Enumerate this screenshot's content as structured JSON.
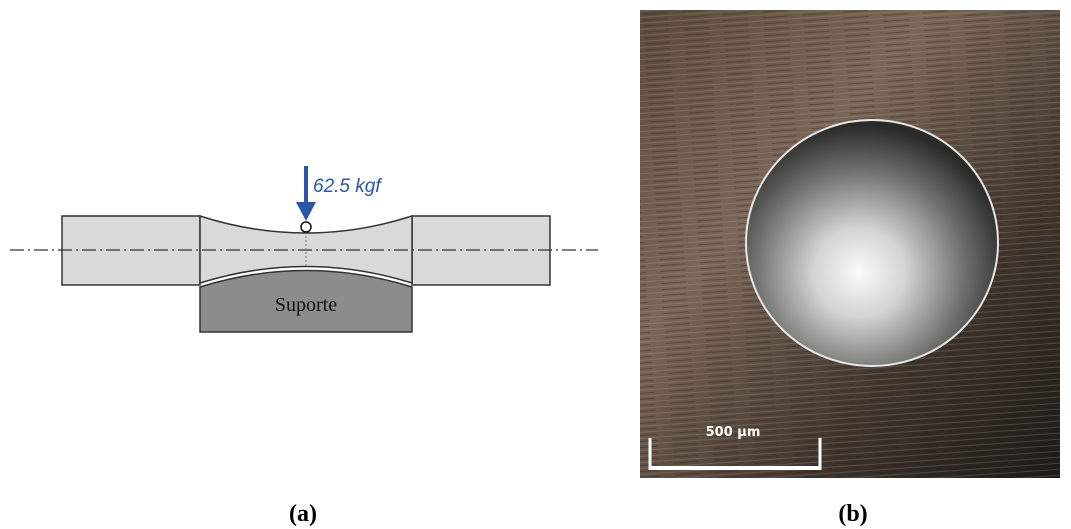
{
  "panels": [
    {
      "label": "(a)",
      "load": "62.5 kgf",
      "support": "Suporte"
    },
    {
      "label": "(b)",
      "scale_bar": "500 µm"
    }
  ]
}
